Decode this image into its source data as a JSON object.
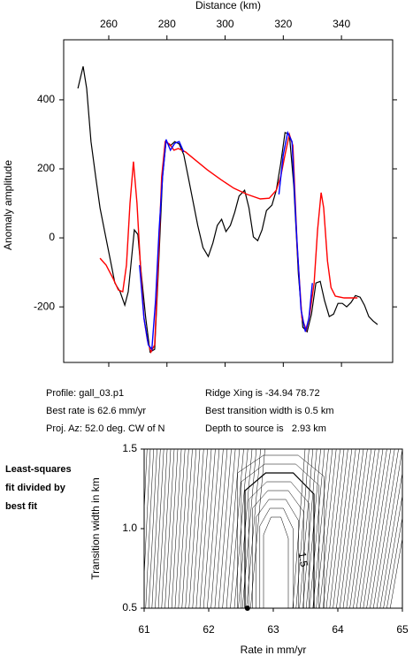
{
  "chart_data": [
    {
      "type": "line",
      "x_label": "Distance (km)",
      "y_label": "Anomaly amplitude",
      "xlim": [
        244.5,
        357.6
      ],
      "xticks": [
        260,
        280,
        300,
        320,
        340
      ],
      "ylim": [
        -361,
        574
      ],
      "yticks": [
        -200,
        0,
        200,
        400
      ],
      "series": [
        {
          "color": "#000000",
          "x": [
            249.4,
            251.2,
            252.4,
            253.9,
            255.5,
            257.0,
            258.5,
            260.3,
            262.1,
            263.9,
            265.5,
            266.7,
            267.6,
            268.8,
            270.0,
            271.2,
            272.7,
            274.2,
            275.8,
            277.0,
            278.5,
            279.7,
            281.2,
            282.7,
            284.2,
            285.8,
            287.3,
            288.8,
            290.6,
            292.4,
            294.2,
            295.8,
            297.3,
            298.8,
            300.3,
            301.8,
            303.3,
            304.8,
            306.7,
            308.2,
            309.7,
            311.2,
            312.7,
            314.2,
            316.1,
            317.6,
            319.1,
            320.6,
            322.1,
            323.6,
            325.2,
            326.7,
            328.2,
            329.7,
            331.2,
            332.7,
            334.2,
            335.8,
            337.3,
            338.8,
            340.3,
            341.8,
            343.3,
            344.8,
            346.4,
            347.9,
            349.4,
            350.9,
            352.4
          ],
          "values": [
            433,
            497,
            433,
            279,
            177,
            87,
            23,
            -54,
            -131,
            -156,
            -195,
            -156,
            -79,
            23,
            10,
            -105,
            -233,
            -331,
            -323,
            -105,
            177,
            279,
            267,
            279,
            272,
            241,
            177,
            113,
            36,
            -28,
            -54,
            -15,
            36,
            54,
            18,
            36,
            74,
            121,
            138,
            87,
            3,
            -8,
            23,
            79,
            95,
            138,
            215,
            305,
            300,
            151,
            -105,
            -259,
            -272,
            -221,
            -131,
            -126,
            -182,
            -228,
            -221,
            -190,
            -190,
            -200,
            -187,
            -167,
            -172,
            -195,
            -228,
            -241,
            -251
          ]
        },
        {
          "color": "#ff0000",
          "x": [
            257.0,
            259.1,
            261.5,
            263.3,
            264.8,
            266.1,
            267.3,
            268.5,
            269.7,
            270.9,
            272.1,
            273.3,
            274.5,
            275.8,
            277.0,
            278.2,
            279.4,
            280.9,
            282.4,
            283.9,
            286.4,
            289.4,
            293.9,
            298.5,
            303.0,
            307.6,
            312.1,
            315.2,
            317.6,
            319.1,
            320.6,
            322.1,
            323.3,
            324.8,
            326.4,
            327.9,
            329.1,
            330.6,
            331.8,
            333.0,
            333.9,
            335.2,
            336.4,
            337.9,
            340.9,
            344.0,
            345.5
          ],
          "values": [
            -59,
            -79,
            -118,
            -151,
            -156,
            -79,
            100,
            221,
            100,
            -79,
            -233,
            -297,
            -331,
            -310,
            -79,
            177,
            279,
            272,
            254,
            259,
            249,
            228,
            197,
            169,
            144,
            126,
            113,
            115,
            138,
            177,
            241,
            300,
            267,
            -28,
            -233,
            -267,
            -221,
            -131,
            23,
            131,
            87,
            -67,
            -144,
            -169,
            -174,
            -174,
            -174
          ]
        },
        {
          "color": "#0000ff",
          "x": [
            270.6,
            272.1,
            273.6,
            274.8,
            276.1,
            277.3,
            278.5,
            279.7,
            281.2,
            282.7,
            284.2,
            285.8,
            300,
            318.5,
            320.0,
            321.5,
            323.0,
            324.5,
            326.1,
            327.6,
            328.8,
            330.0
          ],
          "values": [
            -79,
            -233,
            -310,
            -323,
            -182,
            23,
            177,
            285,
            254,
            274,
            279,
            249,
            null,
            126,
            241,
            305,
            279,
            23,
            -208,
            -272,
            -233,
            -131
          ]
        }
      ]
    },
    {
      "type": "contour",
      "x_label": "Rate in mm/yr",
      "y_label": "Transition width in km",
      "xlim": [
        61,
        65
      ],
      "xticks": [
        61,
        62,
        63,
        64,
        65
      ],
      "ylim": [
        0.5,
        1.5
      ],
      "yticks": [
        0.5,
        {
          "value": 1,
          "label": "1.0"
        },
        1.5
      ],
      "contour_label": "1.5",
      "best_fit": {
        "x": 62.6,
        "y": 0.5
      }
    }
  ],
  "info": [
    "Profile: gall_03.p1",
    "Best rate is 62.6 mm/yr",
    "Proj. Az: 52.0 deg. CW of N",
    "Ridge Xing is -34.94 78.72",
    "Best transition width is 0.5 km",
    "Depth to source is   2.93 km"
  ],
  "note": [
    "Least-squares",
    "fit divided by",
    "best fit"
  ]
}
